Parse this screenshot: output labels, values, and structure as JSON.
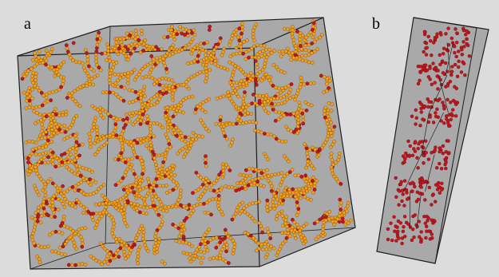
{
  "figure": {
    "panels": [
      {
        "label": "a",
        "description": ""
      },
      {
        "label": "b",
        "description": ""
      }
    ],
    "colors": {
      "background": "#dcdcdc",
      "box_fill": "#a9a9a9",
      "box_edge": "#1e1e1e",
      "bead_primary": "#f2a01d",
      "bead_secondary": "#c3161e"
    }
  }
}
